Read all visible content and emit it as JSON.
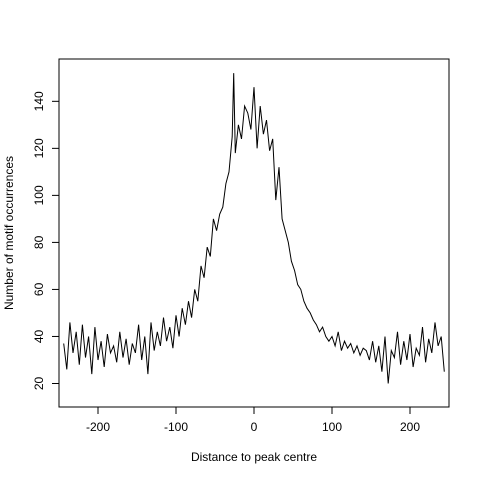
{
  "chart_data": {
    "type": "line",
    "title": "",
    "xlabel": "Distance to peak centre",
    "ylabel": "Number of motif occurrences",
    "xlim": [
      -250,
      250
    ],
    "ylim": [
      10,
      158
    ],
    "x_ticks": [
      -200,
      -100,
      0,
      100,
      200
    ],
    "y_ticks": [
      20,
      40,
      60,
      80,
      100,
      120,
      140
    ],
    "grid": false,
    "legend": "none",
    "line_color": "#000000",
    "series": [
      {
        "x": [
          -244,
          -240,
          -236,
          -232,
          -228,
          -224,
          -220,
          -216,
          -212,
          -208,
          -204,
          -200,
          -196,
          -192,
          -188,
          -184,
          -180,
          -176,
          -172,
          -168,
          -164,
          -160,
          -156,
          -152,
          -148,
          -144,
          -140,
          -136,
          -132,
          -128,
          -124,
          -120,
          -116,
          -112,
          -108,
          -104,
          -100,
          -96,
          -92,
          -88,
          -84,
          -80,
          -76,
          -72,
          -68,
          -64,
          -60,
          -56,
          -52,
          -48,
          -44,
          -40,
          -36,
          -32,
          -28,
          -26,
          -24,
          -20,
          -16,
          -12,
          -8,
          -4,
          0,
          4,
          8,
          12,
          16,
          20,
          24,
          28,
          32,
          36,
          40,
          44,
          48,
          52,
          56,
          60,
          64,
          68,
          72,
          76,
          80,
          84,
          88,
          92,
          96,
          100,
          104,
          108,
          112,
          116,
          120,
          124,
          128,
          132,
          136,
          140,
          144,
          148,
          152,
          156,
          160,
          164,
          168,
          172,
          176,
          180,
          184,
          188,
          192,
          196,
          200,
          204,
          208,
          212,
          216,
          220,
          224,
          228,
          232,
          236,
          240,
          244
        ],
        "values": [
          37,
          26,
          46,
          33,
          42,
          28,
          45,
          31,
          40,
          24,
          44,
          30,
          38,
          27,
          41,
          33,
          36,
          29,
          42,
          31,
          39,
          28,
          37,
          33,
          45,
          30,
          40,
          24,
          46,
          34,
          42,
          36,
          48,
          38,
          44,
          35,
          49,
          40,
          52,
          45,
          55,
          48,
          60,
          55,
          70,
          65,
          78,
          74,
          90,
          85,
          92,
          95,
          105,
          110,
          125,
          152,
          118,
          130,
          124,
          138,
          135,
          128,
          146,
          120,
          138,
          126,
          132,
          119,
          124,
          98,
          112,
          90,
          85,
          80,
          72,
          68,
          62,
          60,
          55,
          52,
          50,
          47,
          45,
          42,
          44,
          40,
          38,
          40,
          36,
          42,
          34,
          38,
          35,
          37,
          33,
          36,
          32,
          35,
          34,
          30,
          38,
          29,
          36,
          25,
          40,
          20,
          34,
          31,
          42,
          28,
          38,
          30,
          41,
          27,
          35,
          32,
          44,
          29,
          39,
          33,
          46,
          36,
          40,
          25
        ]
      }
    ]
  }
}
